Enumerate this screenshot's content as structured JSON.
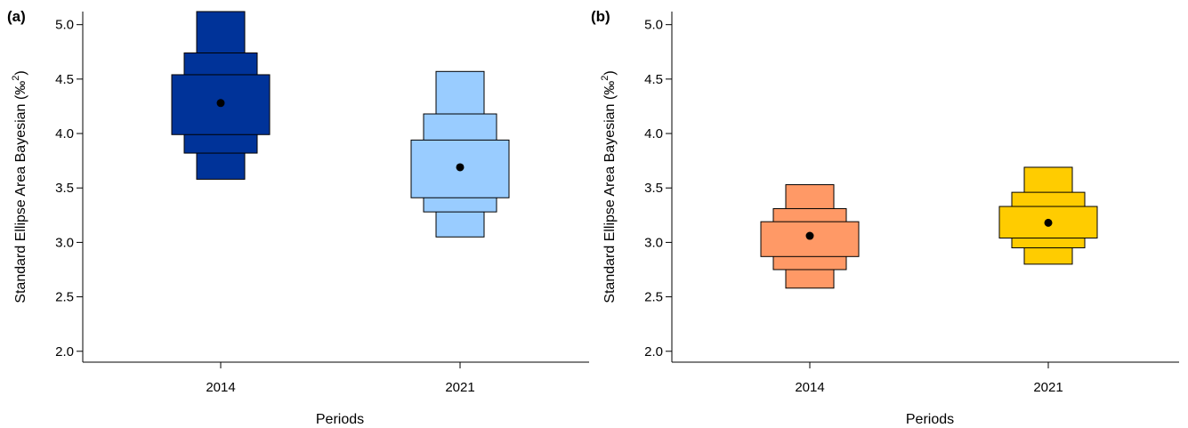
{
  "chart_data": [
    {
      "type": "box",
      "panel_label": "(a)",
      "xlabel": "Periods",
      "ylabel_main": "Standard Ellipse Area Bayesian (",
      "ylabel_unit": "‰",
      "ylabel_exp": "2",
      "ylabel_close": ")",
      "categories": [
        "2014",
        "2021"
      ],
      "ylim": [
        1.9,
        5.12
      ],
      "yticks": [
        "2.0",
        "2.5",
        "3.0",
        "3.5",
        "4.0",
        "4.5",
        "5.0"
      ],
      "series": [
        {
          "category": "2014",
          "color": "#003399",
          "mode": 4.28,
          "intervals": [
            {
              "low": 3.99,
              "high": 4.54
            },
            {
              "low": 3.82,
              "high": 4.74
            },
            {
              "low": 3.58,
              "high": 5.12
            }
          ]
        },
        {
          "category": "2021",
          "color": "#99ccff",
          "mode": 3.69,
          "intervals": [
            {
              "low": 3.41,
              "high": 3.94
            },
            {
              "low": 3.28,
              "high": 4.18
            },
            {
              "low": 3.05,
              "high": 4.57
            }
          ]
        }
      ]
    },
    {
      "type": "box",
      "panel_label": "(b)",
      "xlabel": "Periods",
      "ylabel_main": "Standard Ellipse Area Bayesian (",
      "ylabel_unit": "‰",
      "ylabel_exp": "2",
      "ylabel_close": ")",
      "categories": [
        "2014",
        "2021"
      ],
      "ylim": [
        1.9,
        5.12
      ],
      "yticks": [
        "2.0",
        "2.5",
        "3.0",
        "3.5",
        "4.0",
        "4.5",
        "5.0"
      ],
      "series": [
        {
          "category": "2014",
          "color": "#ff9966",
          "mode": 3.06,
          "intervals": [
            {
              "low": 2.87,
              "high": 3.19
            },
            {
              "low": 2.75,
              "high": 3.31
            },
            {
              "low": 2.58,
              "high": 3.53
            }
          ]
        },
        {
          "category": "2021",
          "color": "#ffcc00",
          "mode": 3.18,
          "intervals": [
            {
              "low": 3.04,
              "high": 3.33
            },
            {
              "low": 2.95,
              "high": 3.46
            },
            {
              "low": 2.8,
              "high": 3.69
            }
          ]
        }
      ]
    }
  ]
}
